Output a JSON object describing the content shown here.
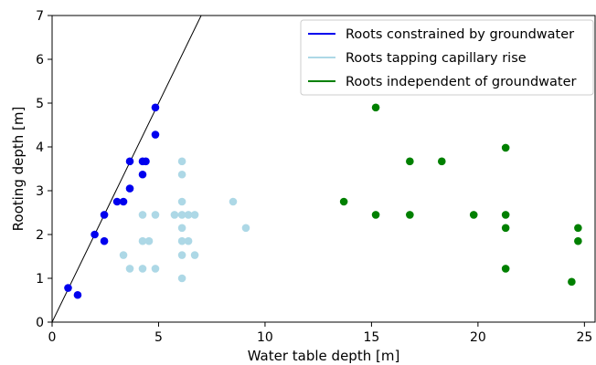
{
  "chart_data": {
    "type": "scatter",
    "xlabel": "Water table depth [m]",
    "ylabel": "Rooting depth [m]",
    "xlim": [
      0,
      25.5
    ],
    "ylim": [
      0,
      7
    ],
    "xticks": [
      0,
      5,
      10,
      15,
      20,
      25
    ],
    "yticks": [
      0,
      1,
      2,
      3,
      4,
      5,
      6,
      7
    ],
    "grid": false,
    "legend_position": "top-right",
    "reference_line": {
      "x": [
        0,
        7
      ],
      "y": [
        0,
        7
      ]
    },
    "series": [
      {
        "name": "Roots constrained by groundwater",
        "color": "#0000ee",
        "points": [
          [
            0.75,
            0.78
          ],
          [
            1.2,
            0.62
          ],
          [
            2.0,
            2.0
          ],
          [
            2.45,
            2.45
          ],
          [
            2.45,
            1.85
          ],
          [
            3.05,
            2.75
          ],
          [
            3.35,
            2.75
          ],
          [
            3.65,
            3.05
          ],
          [
            3.65,
            3.67
          ],
          [
            4.25,
            3.67
          ],
          [
            4.4,
            3.67
          ],
          [
            4.25,
            3.37
          ],
          [
            4.85,
            4.9
          ],
          [
            4.85,
            4.28
          ]
        ]
      },
      {
        "name": "Roots tapping capillary rise",
        "color": "#add8e6",
        "points": [
          [
            3.35,
            1.53
          ],
          [
            3.65,
            1.22
          ],
          [
            4.25,
            1.22
          ],
          [
            4.25,
            1.85
          ],
          [
            4.25,
            2.45
          ],
          [
            4.55,
            1.85
          ],
          [
            4.85,
            1.22
          ],
          [
            4.85,
            2.45
          ],
          [
            5.75,
            2.45
          ],
          [
            6.1,
            3.67
          ],
          [
            6.1,
            3.37
          ],
          [
            6.1,
            2.75
          ],
          [
            6.1,
            2.45
          ],
          [
            6.1,
            2.15
          ],
          [
            6.1,
            1.85
          ],
          [
            6.1,
            1.53
          ],
          [
            6.1,
            1.0
          ],
          [
            6.4,
            2.45
          ],
          [
            6.4,
            1.85
          ],
          [
            6.7,
            2.45
          ],
          [
            6.7,
            1.53
          ],
          [
            8.5,
            2.75
          ],
          [
            9.1,
            2.15
          ]
        ]
      },
      {
        "name": "Roots independent of groundwater",
        "color": "#008000",
        "points": [
          [
            13.7,
            2.75
          ],
          [
            15.2,
            4.9
          ],
          [
            15.2,
            2.45
          ],
          [
            16.8,
            3.67
          ],
          [
            16.8,
            2.45
          ],
          [
            18.3,
            3.67
          ],
          [
            19.8,
            2.45
          ],
          [
            21.3,
            3.98
          ],
          [
            21.3,
            2.45
          ],
          [
            21.3,
            2.15
          ],
          [
            21.3,
            1.22
          ],
          [
            24.4,
            0.92
          ],
          [
            24.7,
            2.15
          ],
          [
            24.7,
            1.85
          ]
        ]
      }
    ]
  }
}
